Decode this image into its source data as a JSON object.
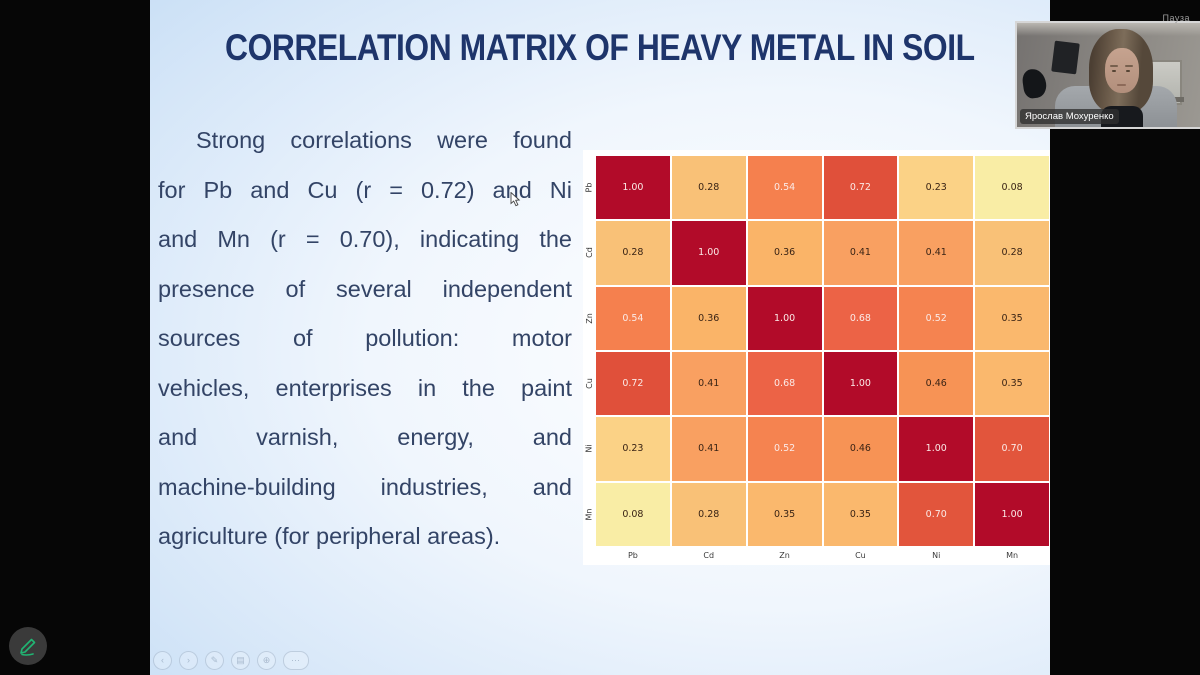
{
  "screen": {
    "pause_label": "Пауза",
    "webcam": {
      "participant_name": "Ярослав Мохуренко"
    }
  },
  "slide": {
    "title": "CORRELATION MATRIX OF HEAVY METAL IN SOIL",
    "paragraph_lines": [
      "Strong correlations were found",
      "for Pb and Cu (r = 0.72) and Ni",
      "and Mn (r = 0.70), indicating the",
      "presence of several independent",
      "sources of pollution: motor",
      "vehicles, enterprises in the paint",
      "and varnish, energy, and",
      "machine-building industries, and",
      "agriculture (for peripheral areas)."
    ]
  },
  "chart_data": {
    "type": "heatmap",
    "x_labels": [
      "Pb",
      "Cd",
      "Zn",
      "Cu",
      "Ni",
      "Mn"
    ],
    "y_labels": [
      "Pb",
      "Cd",
      "Zn",
      "Cu",
      "Ni",
      "Mn"
    ],
    "matrix": [
      [
        1.0,
        0.28,
        0.54,
        0.72,
        0.23,
        0.08
      ],
      [
        0.28,
        1.0,
        0.36,
        0.41,
        0.41,
        0.28
      ],
      [
        0.54,
        0.36,
        1.0,
        0.68,
        0.52,
        0.35
      ],
      [
        0.72,
        0.41,
        0.68,
        1.0,
        0.46,
        0.35
      ],
      [
        0.23,
        0.41,
        0.52,
        0.46,
        1.0,
        0.7
      ],
      [
        0.08,
        0.28,
        0.35,
        0.35,
        0.7,
        1.0
      ]
    ],
    "value_decimals": 2,
    "value_range": [
      0,
      1
    ],
    "colormap_stops": [
      [
        0.08,
        "#f9eda5"
      ],
      [
        0.23,
        "#fbd286"
      ],
      [
        0.28,
        "#f9c177"
      ],
      [
        0.35,
        "#fab86d"
      ],
      [
        0.36,
        "#fab468"
      ],
      [
        0.41,
        "#f9a061"
      ],
      [
        0.46,
        "#f79355"
      ],
      [
        0.52,
        "#f58350"
      ],
      [
        0.54,
        "#f5804e"
      ],
      [
        0.68,
        "#ec6346"
      ],
      [
        0.7,
        "#e2553c"
      ],
      [
        0.72,
        "#e0503a"
      ],
      [
        1.0,
        "#b20b29"
      ]
    ],
    "light_text_threshold": 0.5,
    "cell_text_dark": "#3a2415",
    "cell_text_light": "#fbeae7"
  },
  "toolbar": {
    "ghost_icons": [
      {
        "name": "previous",
        "glyph": "‹"
      },
      {
        "name": "next",
        "glyph": "›"
      },
      {
        "name": "pen",
        "glyph": "✎"
      },
      {
        "name": "all-slides",
        "glyph": "▤"
      },
      {
        "name": "zoom",
        "glyph": "⊕"
      },
      {
        "name": "more",
        "glyph": "⋯"
      }
    ]
  },
  "colors": {
    "slide_title": "#1e356b",
    "body_text": "#334466",
    "annotate_icon": "#21b573",
    "heatmap_high": "#b20b29",
    "heatmap_low": "#f9eda5"
  }
}
